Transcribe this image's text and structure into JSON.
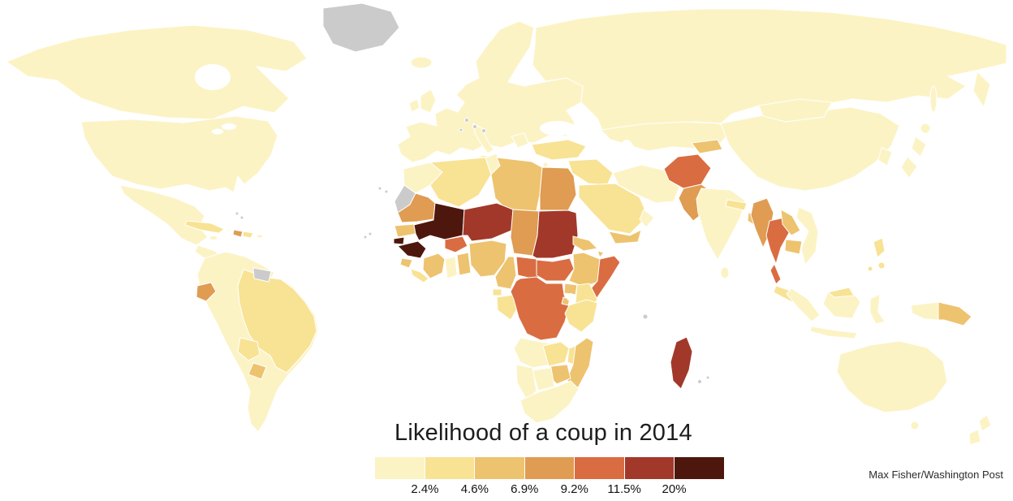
{
  "title": "Likelihood of a coup in 2014",
  "credit": "Max Fisher/Washington Post",
  "legend": {
    "colors": [
      "#FCF3C5",
      "#F8E294",
      "#EDC36F",
      "#DF9C52",
      "#DA6C42",
      "#A2382A",
      "#4E170D"
    ],
    "tick_labels": [
      "2.4%",
      "4.6%",
      "6.9%",
      "9.2%",
      "11.5%",
      "20%"
    ]
  },
  "map": {
    "type": "choropleth-world-map",
    "ocean_color": "#FFFFFF",
    "no_data_color": "#CBCBCB",
    "border_color": "#FFFFFF",
    "regions": {
      "greenland": "nodata",
      "iceland": 1,
      "canada": 1,
      "usa": 1,
      "mexico": 1,
      "central_america": 1,
      "cuba": 2,
      "haiti": 4,
      "dominican_republic": 2,
      "jamaica": 1,
      "puerto_rico": 1,
      "bahamas": "nodata",
      "south_america": 1,
      "brazil": 2,
      "suriname_guiana": "nodata",
      "ecuador": 4,
      "bolivia": 2,
      "paraguay": 3,
      "europe": 1,
      "uk": 1,
      "ireland": 1,
      "italy": 1,
      "sicily": 1,
      "greece": 1,
      "cyprus": 1,
      "malta": "nodata",
      "microstates": "nodata",
      "russia": 1,
      "central_asia": 1,
      "kyrgyzstan_tajikistan": 3,
      "turkey": 2,
      "syria_iraq": 2,
      "saudi_arabia": 2,
      "yemen": 3,
      "oman": 1,
      "iran": 1,
      "afghanistan": 5,
      "pakistan": 4,
      "india": 1,
      "nepal": 2,
      "bangladesh": 3,
      "sri_lanka": 1,
      "china": 1,
      "mongolia": 1,
      "korea": 1,
      "japan": 1,
      "japan_south": 1,
      "hokkaido": 1,
      "sakhalin": 1,
      "myanmar": 4,
      "thailand": 5,
      "thailand_south": 5,
      "laos": 3,
      "cambodia": 3,
      "vietnam": 1,
      "malay_peninsula": 2,
      "sumatra": 1,
      "java": 1,
      "borneo": 1,
      "borneo_malaysia": 2,
      "sulawesi": 1,
      "indonesia_papua": 1,
      "papua_new_guinea": 3,
      "philippines": 2,
      "philippines_south": 2,
      "australia": 1,
      "tasmania": 1,
      "new_zealand_north": 1,
      "new_zealand_south": 1,
      "morocco": 1,
      "western_sahara": "nodata",
      "algeria": 2,
      "tunisia": 1,
      "libya": 3,
      "egypt": 4,
      "mauritania": 4,
      "senegal": 3,
      "guinea_bissau": 7,
      "guinea": 7,
      "sierra_leone": 3,
      "liberia": 2,
      "mali": 7,
      "burkina_faso": 5,
      "ivory_coast": 3,
      "ghana": 1,
      "togo_benin": 3,
      "niger": 6,
      "nigeria": 3,
      "chad": 4,
      "cameroon": 3,
      "equatorial_guinea": 2,
      "gabon_congo": 2,
      "central_african_republic": 5,
      "sudan": 6,
      "south_sudan": 5,
      "eritrea": 3,
      "djibouti": 3,
      "ethiopia": 3,
      "somalia": 5,
      "uganda": 3,
      "kenya": 2,
      "dr_congo": 5,
      "rwanda_burundi": 3,
      "tanzania": 2,
      "angola": 1,
      "zambia": 2,
      "malawi": 2,
      "mozambique": 3,
      "zimbabwe": 3,
      "botswana": 1,
      "namibia": 1,
      "south_africa": 1,
      "madagascar": 6,
      "comoros": "nodata",
      "mauritius": "nodata",
      "canary_islands": "nodata",
      "cape_verde": "nodata"
    }
  }
}
